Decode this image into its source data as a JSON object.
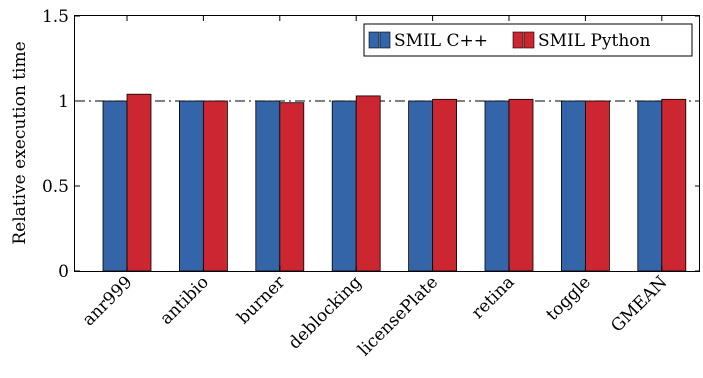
{
  "chart_data": {
    "type": "bar",
    "ylabel": "Relative execution time",
    "ylim": [
      0,
      1.5
    ],
    "yticks": [
      0,
      0.5,
      1,
      1.5
    ],
    "ytick_labels": [
      "0",
      "0.5",
      "1",
      "1.5"
    ],
    "reference_line": 1,
    "categories": [
      "anr999",
      "antibio",
      "burner",
      "deblocking",
      "licensePlate",
      "retina",
      "toggle",
      "GMEAN"
    ],
    "series": [
      {
        "name": "SMIL C++",
        "color": "#3465a8",
        "values": [
          1.0,
          1.0,
          1.0,
          1.0,
          1.0,
          1.0,
          1.0,
          1.0
        ]
      },
      {
        "name": "SMIL Python",
        "color": "#cc2631",
        "values": [
          1.04,
          1.0,
          0.99,
          1.03,
          1.01,
          1.01,
          1.0,
          1.01
        ]
      }
    ],
    "legend_position": "top-right",
    "grid": false
  }
}
